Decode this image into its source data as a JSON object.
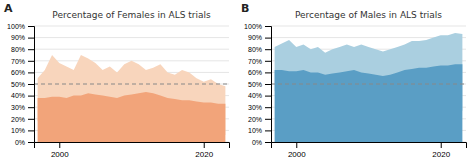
{
  "chart_data": [
    {
      "type": "area",
      "title": "Percentage of Females in ALS trials",
      "annotations": [
        "A"
      ],
      "x": [
        1997,
        1998,
        1999,
        2000,
        2001,
        2002,
        2003,
        2004,
        2005,
        2006,
        2007,
        2008,
        2009,
        2010,
        2011,
        2012,
        2013,
        2014,
        2015,
        2016,
        2017,
        2018,
        2019,
        2020,
        2021,
        2022,
        2023
      ],
      "series": [
        {
          "type": "range",
          "color": "#F8D5BC",
          "lower": [
            18,
            15,
            12,
            18,
            16,
            20,
            18,
            22,
            20,
            18,
            16,
            18,
            16,
            18,
            20,
            22,
            20,
            18,
            16,
            14,
            13,
            12,
            10,
            8,
            9,
            7,
            6
          ],
          "upper": [
            55,
            62,
            75,
            68,
            65,
            62,
            75,
            72,
            68,
            62,
            65,
            60,
            67,
            70,
            67,
            62,
            64,
            67,
            60,
            58,
            62,
            60,
            55,
            52,
            54,
            50,
            48
          ]
        },
        {
          "type": "area",
          "color": "#F2A47A",
          "values": [
            38,
            38,
            39,
            39,
            38,
            40,
            40,
            42,
            41,
            40,
            39,
            38,
            40,
            41,
            42,
            43,
            42,
            40,
            38,
            37,
            36,
            36,
            35,
            34,
            34,
            33,
            33
          ]
        }
      ],
      "reference_lines": [
        {
          "value": 50,
          "line_style": "dashed"
        }
      ],
      "xlim": [
        1996.5,
        2023.5
      ],
      "xticks": [
        2000,
        2020
      ],
      "ylim": [
        0,
        100
      ],
      "yticks": [
        {
          "value": 0,
          "label": "0%"
        },
        {
          "value": 10,
          "label": "10%"
        },
        {
          "value": 20,
          "label": "20%"
        },
        {
          "value": 30,
          "label": "30%"
        },
        {
          "value": 40,
          "label": "40%"
        },
        {
          "value": 50,
          "label": "50%"
        },
        {
          "value": 60,
          "label": "60%"
        },
        {
          "value": 70,
          "label": "70%"
        },
        {
          "value": 80,
          "label": "80%"
        },
        {
          "value": 90,
          "label": "90%"
        },
        {
          "value": 100,
          "label": "100%"
        }
      ],
      "grid": "y"
    },
    {
      "type": "area",
      "title": "Percentage of Males in ALS trials",
      "annotations": [
        "B"
      ],
      "x": [
        1997,
        1998,
        1999,
        2000,
        2001,
        2002,
        2003,
        2004,
        2005,
        2006,
        2007,
        2008,
        2009,
        2010,
        2011,
        2012,
        2013,
        2014,
        2015,
        2016,
        2017,
        2018,
        2019,
        2020,
        2021,
        2022,
        2023
      ],
      "series": [
        {
          "type": "range",
          "color": "#AACFE0",
          "lower": [
            44,
            40,
            36,
            40,
            38,
            40,
            38,
            36,
            38,
            38,
            36,
            38,
            38,
            38,
            38,
            36,
            36,
            36,
            38,
            40,
            38,
            36,
            33,
            30,
            28,
            28,
            27
          ],
          "upper": [
            82,
            85,
            88,
            82,
            84,
            80,
            82,
            77,
            80,
            82,
            84,
            82,
            84,
            82,
            80,
            78,
            80,
            82,
            84,
            87,
            87,
            88,
            90,
            92,
            92,
            94,
            93
          ]
        },
        {
          "type": "area",
          "color": "#5A9EC5",
          "values": [
            62,
            62,
            61,
            61,
            62,
            60,
            60,
            58,
            59,
            60,
            61,
            62,
            60,
            59,
            58,
            57,
            58,
            60,
            62,
            63,
            64,
            64,
            65,
            66,
            66,
            67,
            67
          ]
        }
      ],
      "reference_lines": [
        {
          "value": 50,
          "line_style": "dashed"
        }
      ],
      "xlim": [
        1996.5,
        2023.5
      ],
      "xticks": [
        2000,
        2020
      ],
      "ylim": [
        0,
        100
      ],
      "yticks": [
        {
          "value": 0,
          "label": "0%"
        },
        {
          "value": 10,
          "label": "10%"
        },
        {
          "value": 20,
          "label": "20%"
        },
        {
          "value": 30,
          "label": "30%"
        },
        {
          "value": 40,
          "label": "40%"
        },
        {
          "value": 50,
          "label": "50%"
        },
        {
          "value": 60,
          "label": "60%"
        },
        {
          "value": 70,
          "label": "70%"
        },
        {
          "value": 80,
          "label": "80%"
        },
        {
          "value": 90,
          "label": "90%"
        },
        {
          "value": 100,
          "label": "100%"
        }
      ],
      "grid": "y"
    }
  ]
}
